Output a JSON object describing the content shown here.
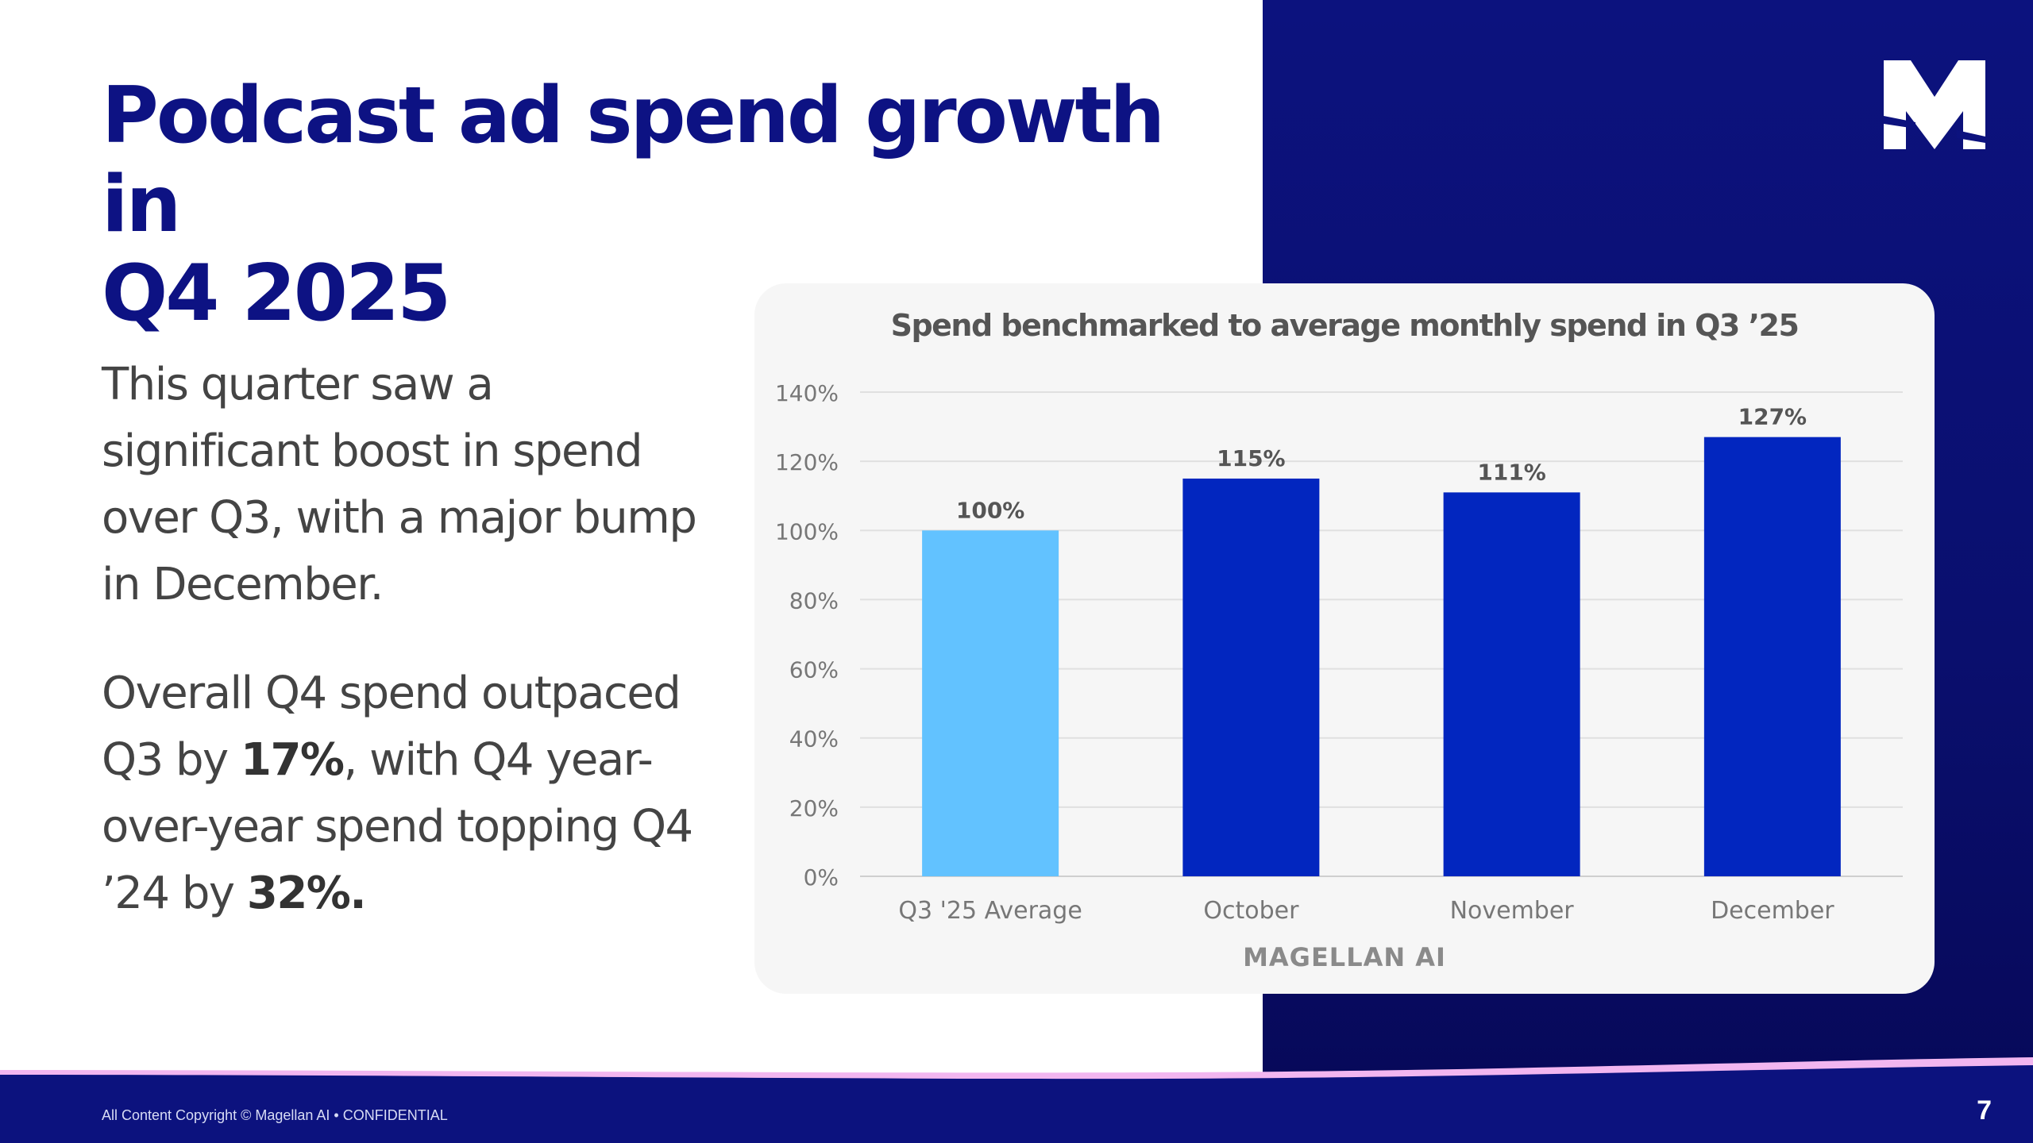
{
  "slide": {
    "title_line1": "Podcast ad spend growth in",
    "title_line2": "Q4 2025",
    "paragraph1": "This quarter saw a significant boost in spend over Q3, with a major bump in December.",
    "paragraph2": {
      "part1": "Overall Q4 spend outpaced Q3 by ",
      "bold1": "17%",
      "part2": ", with Q4 year-over-year spend topping Q4 ’24 by ",
      "bold2": "32%."
    },
    "footer": "All Content Copyright © Magellan AI • CONFIDENTIAL",
    "page_number": "7",
    "brand_watermark": "MAGELLAN AI",
    "logo_icon": "magellan-m-logo"
  },
  "colors": {
    "title": "#0d1283",
    "panel": "#0c127e",
    "baseline_bar": "#62c2ff",
    "month_bar": "#0226bf",
    "text": "#444444"
  },
  "chart_data": {
    "type": "bar",
    "title": "Spend benchmarked to average monthly spend in Q3 ’25",
    "categories": [
      "Q3 '25 Average",
      "October",
      "November",
      "December"
    ],
    "values": [
      100,
      115,
      111,
      127
    ],
    "data_labels": [
      "100%",
      "115%",
      "111%",
      "127%"
    ],
    "bar_colors": [
      "#62c2ff",
      "#0226bf",
      "#0226bf",
      "#0226bf"
    ],
    "ylim": [
      0,
      140
    ],
    "yticks": [
      0,
      20,
      40,
      60,
      80,
      100,
      120,
      140
    ],
    "ytick_labels": [
      "0%",
      "20%",
      "40%",
      "60%",
      "80%",
      "100%",
      "120%",
      "140%"
    ],
    "xlabel": "",
    "ylabel": "",
    "grid": true
  }
}
